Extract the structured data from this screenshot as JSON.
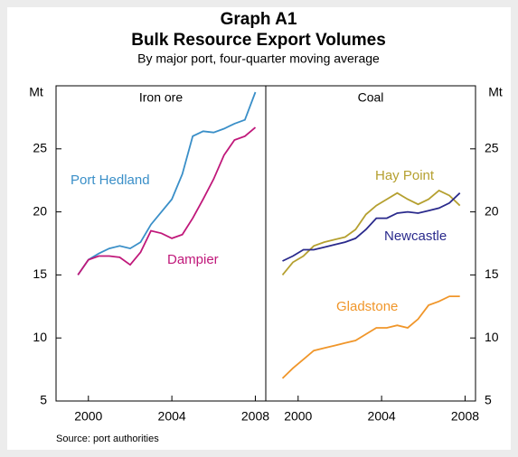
{
  "header": {
    "title": "Graph A1",
    "subtitle": "Bulk Resource Export Volumes",
    "note": "By major port, four-quarter moving average",
    "source": "Source: port authorities"
  },
  "chart_data": [
    {
      "type": "line",
      "title": "Iron ore",
      "y_label": "Mt",
      "xlim": [
        1998.45,
        2008.5
      ],
      "xticks": [
        2000,
        2004,
        2008
      ],
      "ylim": [
        5,
        30
      ],
      "yticks": [
        5,
        10,
        15,
        20,
        25
      ],
      "x": [
        1999.5,
        2000,
        2000.5,
        2001,
        2001.5,
        2002,
        2002.5,
        2003,
        2003.5,
        2004,
        2004.5,
        2005,
        2005.5,
        2006,
        2006.5,
        2007,
        2007.5,
        2008
      ],
      "series": [
        {
          "name": "Port Hedland",
          "color": "#3a8fc8",
          "values": [
            15.0,
            16.2,
            16.7,
            17.1,
            17.3,
            17.1,
            17.6,
            19.0,
            20.0,
            21.0,
            23.0,
            26.0,
            26.4,
            26.3,
            26.6,
            27.0,
            27.3,
            29.5
          ]
        },
        {
          "name": "Dampier",
          "color": "#c0187a",
          "values": [
            15.0,
            16.2,
            16.5,
            16.5,
            16.4,
            15.8,
            16.8,
            18.5,
            18.3,
            17.9,
            18.2,
            19.5,
            21.0,
            22.6,
            24.5,
            25.7,
            26.0,
            26.7
          ]
        }
      ]
    },
    {
      "type": "line",
      "title": "Coal",
      "y_label": "Mt",
      "xlim": [
        1998.45,
        2008.5
      ],
      "xticks": [
        2000,
        2004,
        2008
      ],
      "ylim": [
        5,
        30
      ],
      "yticks": [
        5,
        10,
        15,
        20,
        25
      ],
      "x": [
        1999.25,
        1999.75,
        2000.25,
        2000.75,
        2001.25,
        2001.75,
        2002.25,
        2002.75,
        2003.25,
        2003.75,
        2004.25,
        2004.75,
        2005.25,
        2005.75,
        2006.25,
        2006.75,
        2007.25,
        2007.75
      ],
      "series": [
        {
          "name": "Hay Point",
          "color": "#b5a030",
          "values": [
            15.0,
            16.0,
            16.5,
            17.3,
            17.6,
            17.8,
            18.0,
            18.6,
            19.8,
            20.5,
            21.0,
            21.5,
            21.0,
            20.6,
            21.0,
            21.7,
            21.3,
            20.5
          ]
        },
        {
          "name": "Newcastle",
          "color": "#2a2a8c",
          "values": [
            16.1,
            16.5,
            17.0,
            17.0,
            17.2,
            17.4,
            17.6,
            17.9,
            18.6,
            19.5,
            19.5,
            19.9,
            20.0,
            19.9,
            20.1,
            20.3,
            20.7,
            21.5
          ]
        },
        {
          "name": "Gladstone",
          "color": "#f0962a",
          "values": [
            6.8,
            7.6,
            8.3,
            9.0,
            9.2,
            9.4,
            9.6,
            9.8,
            10.3,
            10.8,
            10.8,
            11.0,
            10.8,
            11.5,
            12.6,
            12.9,
            13.3,
            13.3
          ]
        }
      ]
    }
  ]
}
